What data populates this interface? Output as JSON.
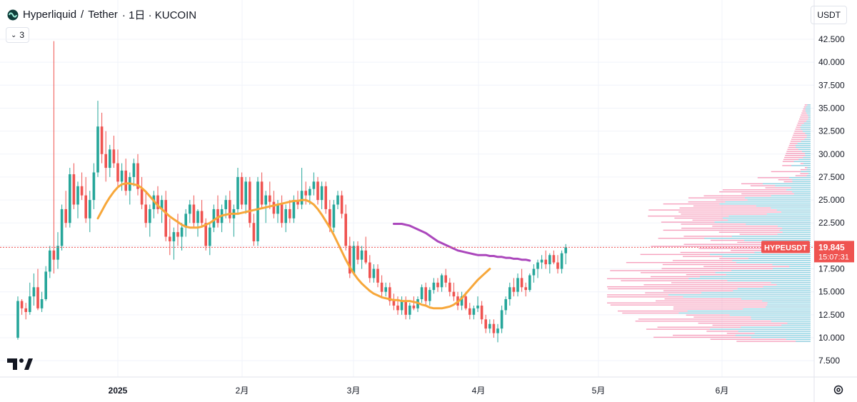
{
  "header": {
    "symbol_name": "Hyperliquid",
    "separator": "/",
    "quote_name": "Tether",
    "interval_text": "· 1日 · KUCOIN",
    "indicator_badge": "3",
    "currency_label": "USDT"
  },
  "price_tag": {
    "ticker": "HYPEUSDT",
    "price": "19.845",
    "countdown": "15:07:31"
  },
  "colors": {
    "up": "#26a69a",
    "down": "#ef5350",
    "ma_fast": "#f7a73a",
    "ma_slow": "#ab47bc",
    "vp_up": "#80deea",
    "vp_down": "#f48fb1",
    "price_line": "#ef5350"
  },
  "chart_data": {
    "type": "candlestick",
    "y_axis_labels": [
      "7.500",
      "10.000",
      "12.500",
      "15.000",
      "17.500",
      "20.000",
      "22.500",
      "25.000",
      "27.500",
      "30.000",
      "32.500",
      "35.000",
      "37.500",
      "40.000",
      "42.500"
    ],
    "y_axis_values": [
      7.5,
      10,
      12.5,
      15,
      17.5,
      20,
      22.5,
      25,
      27.5,
      30,
      32.5,
      35,
      37.5,
      40,
      42.5
    ],
    "x_axis_labels": [
      "2025",
      "2月",
      "3月",
      "4月",
      "5月",
      "6月"
    ],
    "last_price": 19.845,
    "candles": [
      [
        10.0,
        14.5,
        9.8,
        14.0
      ],
      [
        14.0,
        14.2,
        12.5,
        13.2
      ],
      [
        13.2,
        13.8,
        12.0,
        12.8
      ],
      [
        12.8,
        16.0,
        12.5,
        14.5
      ],
      [
        14.5,
        17.0,
        13.5,
        15.5
      ],
      [
        15.5,
        17.5,
        13.0,
        13.2
      ],
      [
        13.2,
        15.0,
        12.8,
        14.2
      ],
      [
        14.2,
        17.8,
        14.0,
        17.2
      ],
      [
        17.2,
        20.0,
        16.5,
        19.5
      ],
      [
        19.5,
        42.3,
        17.0,
        18.5
      ],
      [
        18.5,
        21.5,
        17.5,
        20.0
      ],
      [
        20.0,
        24.5,
        19.5,
        24.0
      ],
      [
        24.0,
        26.0,
        22.0,
        22.5
      ],
      [
        22.5,
        28.5,
        22.0,
        27.8
      ],
      [
        27.8,
        29.0,
        24.0,
        24.5
      ],
      [
        24.5,
        27.0,
        23.0,
        26.5
      ],
      [
        26.5,
        28.0,
        25.0,
        25.5
      ],
      [
        25.5,
        27.5,
        22.5,
        23.0
      ],
      [
        23.0,
        26.0,
        21.5,
        25.0
      ],
      [
        25.0,
        29.0,
        24.0,
        28.0
      ],
      [
        28.0,
        35.8,
        27.5,
        33.0
      ],
      [
        33.0,
        34.5,
        29.0,
        30.0
      ],
      [
        30.0,
        32.5,
        27.0,
        28.5
      ],
      [
        28.5,
        31.0,
        27.5,
        30.5
      ],
      [
        30.5,
        32.0,
        28.5,
        29.0
      ],
      [
        29.0,
        30.5,
        26.5,
        27.0
      ],
      [
        27.0,
        29.0,
        26.0,
        28.2
      ],
      [
        28.2,
        29.5,
        25.5,
        26.0
      ],
      [
        26.0,
        28.0,
        24.5,
        27.5
      ],
      [
        27.5,
        29.5,
        26.5,
        29.0
      ],
      [
        29.0,
        30.0,
        25.5,
        26.2
      ],
      [
        26.2,
        27.5,
        24.0,
        24.5
      ],
      [
        24.5,
        26.0,
        22.0,
        22.5
      ],
      [
        22.5,
        24.5,
        21.0,
        24.0
      ],
      [
        24.0,
        26.0,
        23.0,
        25.5
      ],
      [
        25.5,
        26.5,
        23.5,
        24.0
      ],
      [
        24.0,
        25.5,
        22.5,
        25.0
      ],
      [
        25.0,
        26.0,
        20.5,
        21.0
      ],
      [
        21.0,
        23.0,
        19.0,
        20.5
      ],
      [
        20.5,
        22.0,
        18.5,
        21.5
      ],
      [
        21.5,
        23.5,
        20.0,
        21.0
      ],
      [
        21.0,
        22.5,
        19.5,
        22.0
      ],
      [
        22.0,
        24.0,
        21.0,
        23.5
      ],
      [
        23.5,
        25.0,
        22.5,
        24.5
      ],
      [
        24.5,
        25.5,
        22.0,
        22.5
      ],
      [
        22.5,
        24.0,
        21.0,
        23.8
      ],
      [
        23.8,
        25.0,
        22.0,
        22.5
      ],
      [
        22.5,
        23.0,
        19.5,
        20.0
      ],
      [
        20.0,
        22.5,
        19.0,
        22.0
      ],
      [
        22.0,
        24.5,
        21.5,
        24.0
      ],
      [
        24.0,
        25.5,
        22.0,
        22.5
      ],
      [
        22.5,
        24.5,
        21.5,
        24.0
      ],
      [
        24.0,
        25.5,
        23.0,
        25.0
      ],
      [
        25.0,
        26.0,
        22.5,
        23.0
      ],
      [
        23.0,
        24.5,
        21.0,
        24.0
      ],
      [
        24.0,
        28.5,
        23.5,
        27.5
      ],
      [
        27.5,
        28.0,
        24.0,
        24.5
      ],
      [
        24.5,
        27.5,
        23.5,
        27.0
      ],
      [
        27.0,
        27.5,
        22.0,
        22.5
      ],
      [
        22.5,
        23.5,
        20.0,
        20.5
      ],
      [
        20.5,
        27.5,
        20.0,
        27.0
      ],
      [
        27.0,
        28.0,
        24.0,
        24.5
      ],
      [
        24.5,
        26.0,
        22.5,
        25.5
      ],
      [
        25.5,
        27.0,
        24.0,
        24.8
      ],
      [
        24.8,
        26.0,
        23.0,
        23.5
      ],
      [
        23.5,
        25.0,
        22.5,
        24.5
      ],
      [
        24.5,
        25.5,
        22.0,
        22.5
      ],
      [
        22.5,
        24.5,
        21.5,
        24.0
      ],
      [
        24.0,
        25.0,
        22.5,
        23.0
      ],
      [
        23.0,
        25.5,
        22.5,
        25.0
      ],
      [
        25.0,
        26.0,
        24.0,
        24.5
      ],
      [
        24.5,
        28.5,
        24.0,
        26.0
      ],
      [
        26.0,
        27.0,
        24.5,
        25.5
      ],
      [
        25.5,
        26.5,
        24.5,
        26.2
      ],
      [
        26.2,
        28.0,
        25.5,
        27.0
      ],
      [
        27.0,
        27.5,
        24.5,
        25.0
      ],
      [
        25.0,
        27.0,
        24.0,
        26.5
      ],
      [
        26.5,
        27.0,
        23.5,
        24.0
      ],
      [
        24.0,
        25.0,
        21.5,
        22.0
      ],
      [
        22.0,
        25.0,
        21.5,
        24.5
      ],
      [
        24.5,
        26.0,
        24.0,
        25.5
      ],
      [
        25.5,
        26.0,
        23.0,
        23.5
      ],
      [
        23.5,
        24.5,
        19.5,
        20.0
      ],
      [
        20.0,
        21.0,
        16.5,
        17.0
      ],
      [
        17.0,
        20.5,
        16.8,
        20.0
      ],
      [
        20.0,
        20.5,
        18.0,
        18.5
      ],
      [
        18.5,
        20.0,
        17.5,
        19.5
      ],
      [
        19.5,
        21.0,
        18.0,
        18.2
      ],
      [
        18.2,
        19.0,
        16.0,
        16.5
      ],
      [
        16.5,
        18.0,
        16.0,
        17.5
      ],
      [
        17.5,
        18.0,
        15.5,
        16.0
      ],
      [
        16.0,
        16.8,
        14.5,
        15.0
      ],
      [
        15.0,
        16.0,
        14.5,
        15.5
      ],
      [
        15.5,
        16.0,
        13.5,
        14.0
      ],
      [
        14.0,
        14.8,
        13.0,
        13.5
      ],
      [
        13.5,
        14.5,
        12.5,
        13.0
      ],
      [
        13.0,
        14.5,
        12.5,
        14.0
      ],
      [
        14.0,
        14.5,
        12.0,
        12.5
      ],
      [
        12.5,
        13.8,
        12.0,
        13.5
      ],
      [
        13.5,
        14.5,
        13.0,
        13.2
      ],
      [
        13.2,
        14.5,
        12.8,
        14.2
      ],
      [
        14.2,
        15.8,
        13.8,
        15.5
      ],
      [
        15.5,
        16.0,
        13.5,
        14.0
      ],
      [
        14.0,
        15.5,
        13.5,
        15.2
      ],
      [
        15.2,
        16.5,
        14.8,
        16.0
      ],
      [
        16.0,
        16.5,
        15.0,
        15.5
      ],
      [
        15.5,
        17.0,
        15.0,
        16.8
      ],
      [
        16.8,
        17.5,
        15.5,
        16.0
      ],
      [
        16.0,
        16.5,
        14.5,
        15.0
      ],
      [
        15.0,
        16.0,
        14.0,
        14.5
      ],
      [
        14.5,
        15.0,
        13.0,
        13.5
      ],
      [
        13.5,
        15.0,
        13.0,
        14.5
      ],
      [
        14.5,
        15.0,
        13.0,
        13.2
      ],
      [
        13.2,
        13.8,
        12.0,
        12.5
      ],
      [
        12.5,
        13.5,
        12.0,
        13.2
      ],
      [
        13.2,
        14.5,
        12.8,
        13.5
      ],
      [
        13.5,
        14.0,
        11.5,
        12.0
      ],
      [
        12.0,
        12.5,
        10.5,
        11.0
      ],
      [
        11.0,
        12.0,
        10.5,
        11.5
      ],
      [
        11.5,
        12.0,
        10.0,
        10.5
      ],
      [
        10.5,
        11.5,
        9.5,
        11.0
      ],
      [
        11.0,
        13.5,
        10.5,
        13.0
      ],
      [
        13.0,
        14.5,
        12.5,
        14.2
      ],
      [
        14.2,
        16.0,
        13.5,
        15.5
      ],
      [
        15.5,
        16.5,
        14.5,
        15.0
      ],
      [
        15.0,
        17.0,
        14.5,
        16.5
      ],
      [
        16.5,
        17.5,
        15.0,
        15.5
      ],
      [
        15.5,
        16.0,
        14.5,
        15.2
      ],
      [
        15.2,
        17.0,
        15.0,
        16.8
      ],
      [
        16.8,
        18.0,
        16.0,
        17.5
      ],
      [
        17.5,
        18.5,
        16.5,
        18.2
      ],
      [
        18.2,
        19.0,
        17.5,
        18.5
      ],
      [
        18.5,
        19.5,
        17.5,
        18.0
      ],
      [
        18.0,
        19.2,
        17.0,
        19.0
      ],
      [
        19.0,
        19.5,
        18.0,
        18.2
      ],
      [
        18.2,
        19.0,
        17.0,
        17.5
      ],
      [
        17.5,
        19.5,
        17.0,
        19.2
      ],
      [
        19.2,
        20.2,
        18.0,
        19.845
      ]
    ],
    "ma_fast": [
      null,
      null,
      null,
      null,
      null,
      null,
      null,
      null,
      null,
      null,
      null,
      null,
      null,
      null,
      null,
      null,
      null,
      null,
      null,
      null,
      23.0,
      23.8,
      24.6,
      25.3,
      25.9,
      26.4,
      26.7,
      26.8,
      26.8,
      26.7,
      26.6,
      26.3,
      25.9,
      25.4,
      24.9,
      24.4,
      24.0,
      23.6,
      23.2,
      22.9,
      22.6,
      22.3,
      22.1,
      22.0,
      22.0,
      22.0,
      22.1,
      22.3,
      22.5,
      22.8,
      23.1,
      23.3,
      23.4,
      23.5,
      23.5,
      23.5,
      23.6,
      23.7,
      23.8,
      23.9,
      24.0,
      24.1,
      24.2,
      24.3,
      24.4,
      24.5,
      24.6,
      24.7,
      24.8,
      24.9,
      24.9,
      25.0,
      25.0,
      24.8,
      24.5,
      24.0,
      23.4,
      22.7,
      22.0,
      21.2,
      20.3,
      19.4,
      18.5,
      17.7,
      17.0,
      16.4,
      15.9,
      15.5,
      15.1,
      14.8,
      14.6,
      14.4,
      14.3,
      14.2,
      14.1,
      14.1,
      14.0,
      14.0,
      14.0,
      13.9,
      13.8,
      13.6,
      13.5,
      13.3,
      13.2,
      13.2,
      13.2,
      13.3,
      13.4,
      13.6,
      13.9,
      14.3,
      14.8,
      15.3,
      15.8,
      16.3,
      16.7,
      17.1,
      17.5
    ],
    "ma_slow": [
      null,
      null,
      null,
      null,
      null,
      null,
      null,
      null,
      null,
      null,
      null,
      null,
      null,
      null,
      null,
      null,
      null,
      null,
      null,
      null,
      null,
      null,
      null,
      null,
      null,
      null,
      null,
      null,
      null,
      null,
      null,
      null,
      null,
      null,
      null,
      null,
      null,
      null,
      null,
      null,
      null,
      null,
      null,
      null,
      null,
      null,
      null,
      null,
      null,
      null,
      null,
      null,
      null,
      null,
      null,
      null,
      null,
      null,
      null,
      null,
      null,
      null,
      null,
      null,
      null,
      null,
      null,
      null,
      null,
      null,
      null,
      null,
      null,
      null,
      null,
      null,
      null,
      null,
      null,
      null,
      null,
      null,
      null,
      null,
      null,
      null,
      null,
      null,
      null,
      null,
      null,
      null,
      null,
      null,
      22.4,
      22.4,
      22.4,
      22.3,
      22.2,
      22.0,
      21.8,
      21.6,
      21.4,
      21.1,
      20.8,
      20.5,
      20.3,
      20.1,
      19.9,
      19.7,
      19.5,
      19.4,
      19.3,
      19.2,
      19.1,
      19.0,
      19.0,
      19.0,
      18.9,
      18.9,
      18.8,
      18.8,
      18.7,
      18.7,
      18.6,
      18.6,
      18.5,
      18.5,
      18.4
    ]
  }
}
